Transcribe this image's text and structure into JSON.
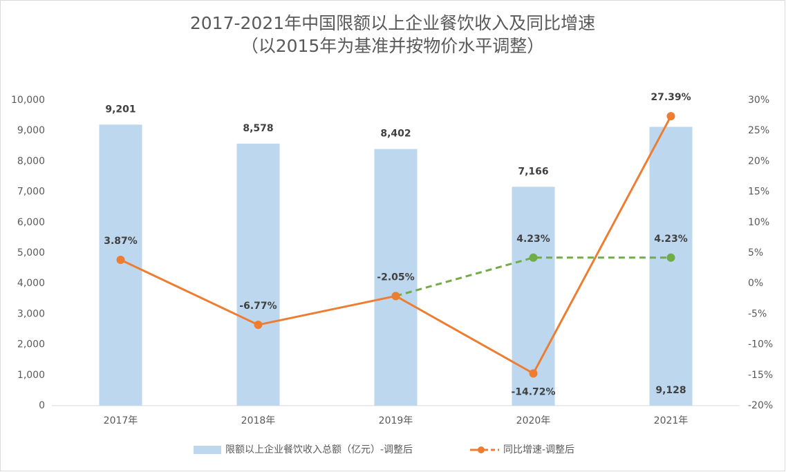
{
  "chart_data": {
    "type": "bar",
    "title": "2017-2021年中国限额以上企业餐饮收入及同比增速",
    "subtitle": "（以2015年为基准并按物价水平调整）",
    "categories": [
      "2017年",
      "2018年",
      "2019年",
      "2020年",
      "2021年"
    ],
    "series": [
      {
        "name": "限额以上企业餐饮收入总额（亿元）-调整后",
        "type": "bar",
        "color": "#bdd7ee",
        "values": [
          9201,
          8578,
          8402,
          7166,
          9128
        ],
        "value_labels": [
          "9,201",
          "8,578",
          "8,402",
          "7,166",
          "9,128"
        ]
      },
      {
        "name": "同比增速-调整后",
        "type": "line",
        "axis": "y2",
        "color": "#ed7d31",
        "values": [
          3.87,
          -6.77,
          -2.05,
          -14.72,
          27.39
        ],
        "value_labels": [
          "3.87%",
          "-6.77%",
          "-2.05%",
          "-14.72%",
          "27.39%"
        ]
      },
      {
        "type": "line",
        "axis": "y2",
        "color": "#70ad47",
        "dashed": true,
        "values": [
          null,
          null,
          -2.05,
          4.23,
          4.23
        ],
        "value_labels": [
          null,
          null,
          null,
          "4.23%",
          "4.23%"
        ]
      }
    ],
    "ylim": [
      0,
      10000
    ],
    "yticks": [
      0,
      {
        "value": 1000,
        "label": "1,000"
      },
      {
        "value": 2000,
        "label": "2,000"
      },
      {
        "value": 3000,
        "label": "3,000"
      },
      {
        "value": 4000,
        "label": "4,000"
      },
      {
        "value": 5000,
        "label": "5,000"
      },
      {
        "value": 6000,
        "label": "6,000"
      },
      {
        "value": 7000,
        "label": "7,000"
      },
      {
        "value": 8000,
        "label": "8,000"
      },
      {
        "value": 9000,
        "label": "9,000"
      },
      {
        "value": 10000,
        "label": "10,000"
      }
    ],
    "y2lim": [
      -20,
      30
    ],
    "y2ticks": [
      {
        "value": -20,
        "label": "-20%"
      },
      {
        "value": -15,
        "label": "-15%"
      },
      {
        "value": -10,
        "label": "-10%"
      },
      {
        "value": -5,
        "label": "-5%"
      },
      {
        "value": 0,
        "label": "0%"
      },
      {
        "value": 5,
        "label": "5%"
      },
      {
        "value": 10,
        "label": "10%"
      },
      {
        "value": 15,
        "label": "15%"
      },
      {
        "value": 20,
        "label": "20%"
      },
      {
        "value": 25,
        "label": "25%"
      },
      {
        "value": 30,
        "label": "30%"
      }
    ],
    "grid": false,
    "legend": "bottom"
  }
}
